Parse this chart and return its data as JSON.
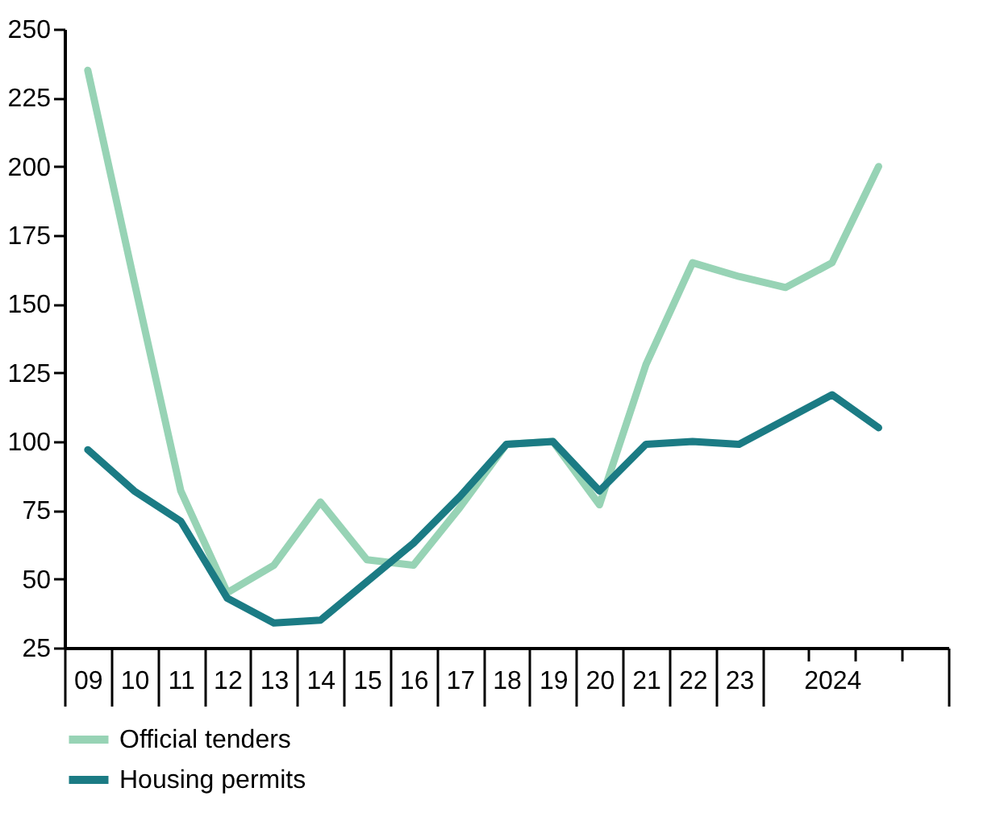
{
  "chart_data": {
    "type": "line",
    "categories": [
      "09",
      "10",
      "11",
      "12",
      "13",
      "14",
      "15",
      "16",
      "17",
      "18",
      "19",
      "20",
      "21",
      "22",
      "23",
      null,
      "2024",
      null,
      null
    ],
    "series": [
      {
        "name": "Official tenders",
        "color": "#97d3b5",
        "values": [
          235,
          158,
          82,
          45,
          55,
          78,
          57,
          55,
          76,
          99,
          100,
          77,
          128,
          165,
          160,
          156,
          165,
          200,
          null
        ]
      },
      {
        "name": "Housing permits",
        "color": "#1b7b84",
        "values": [
          97,
          82,
          71,
          43,
          34,
          35,
          49,
          63,
          80,
          99,
          100,
          82,
          99,
          100,
          99,
          108,
          117,
          105,
          null
        ]
      }
    ],
    "ylim": [
      25,
      250
    ],
    "yticks": [
      25,
      50,
      75,
      100,
      125,
      150,
      175,
      200,
      225,
      250
    ],
    "grid": false,
    "legend": "bottom",
    "marker": "none",
    "line_style": "solid"
  }
}
